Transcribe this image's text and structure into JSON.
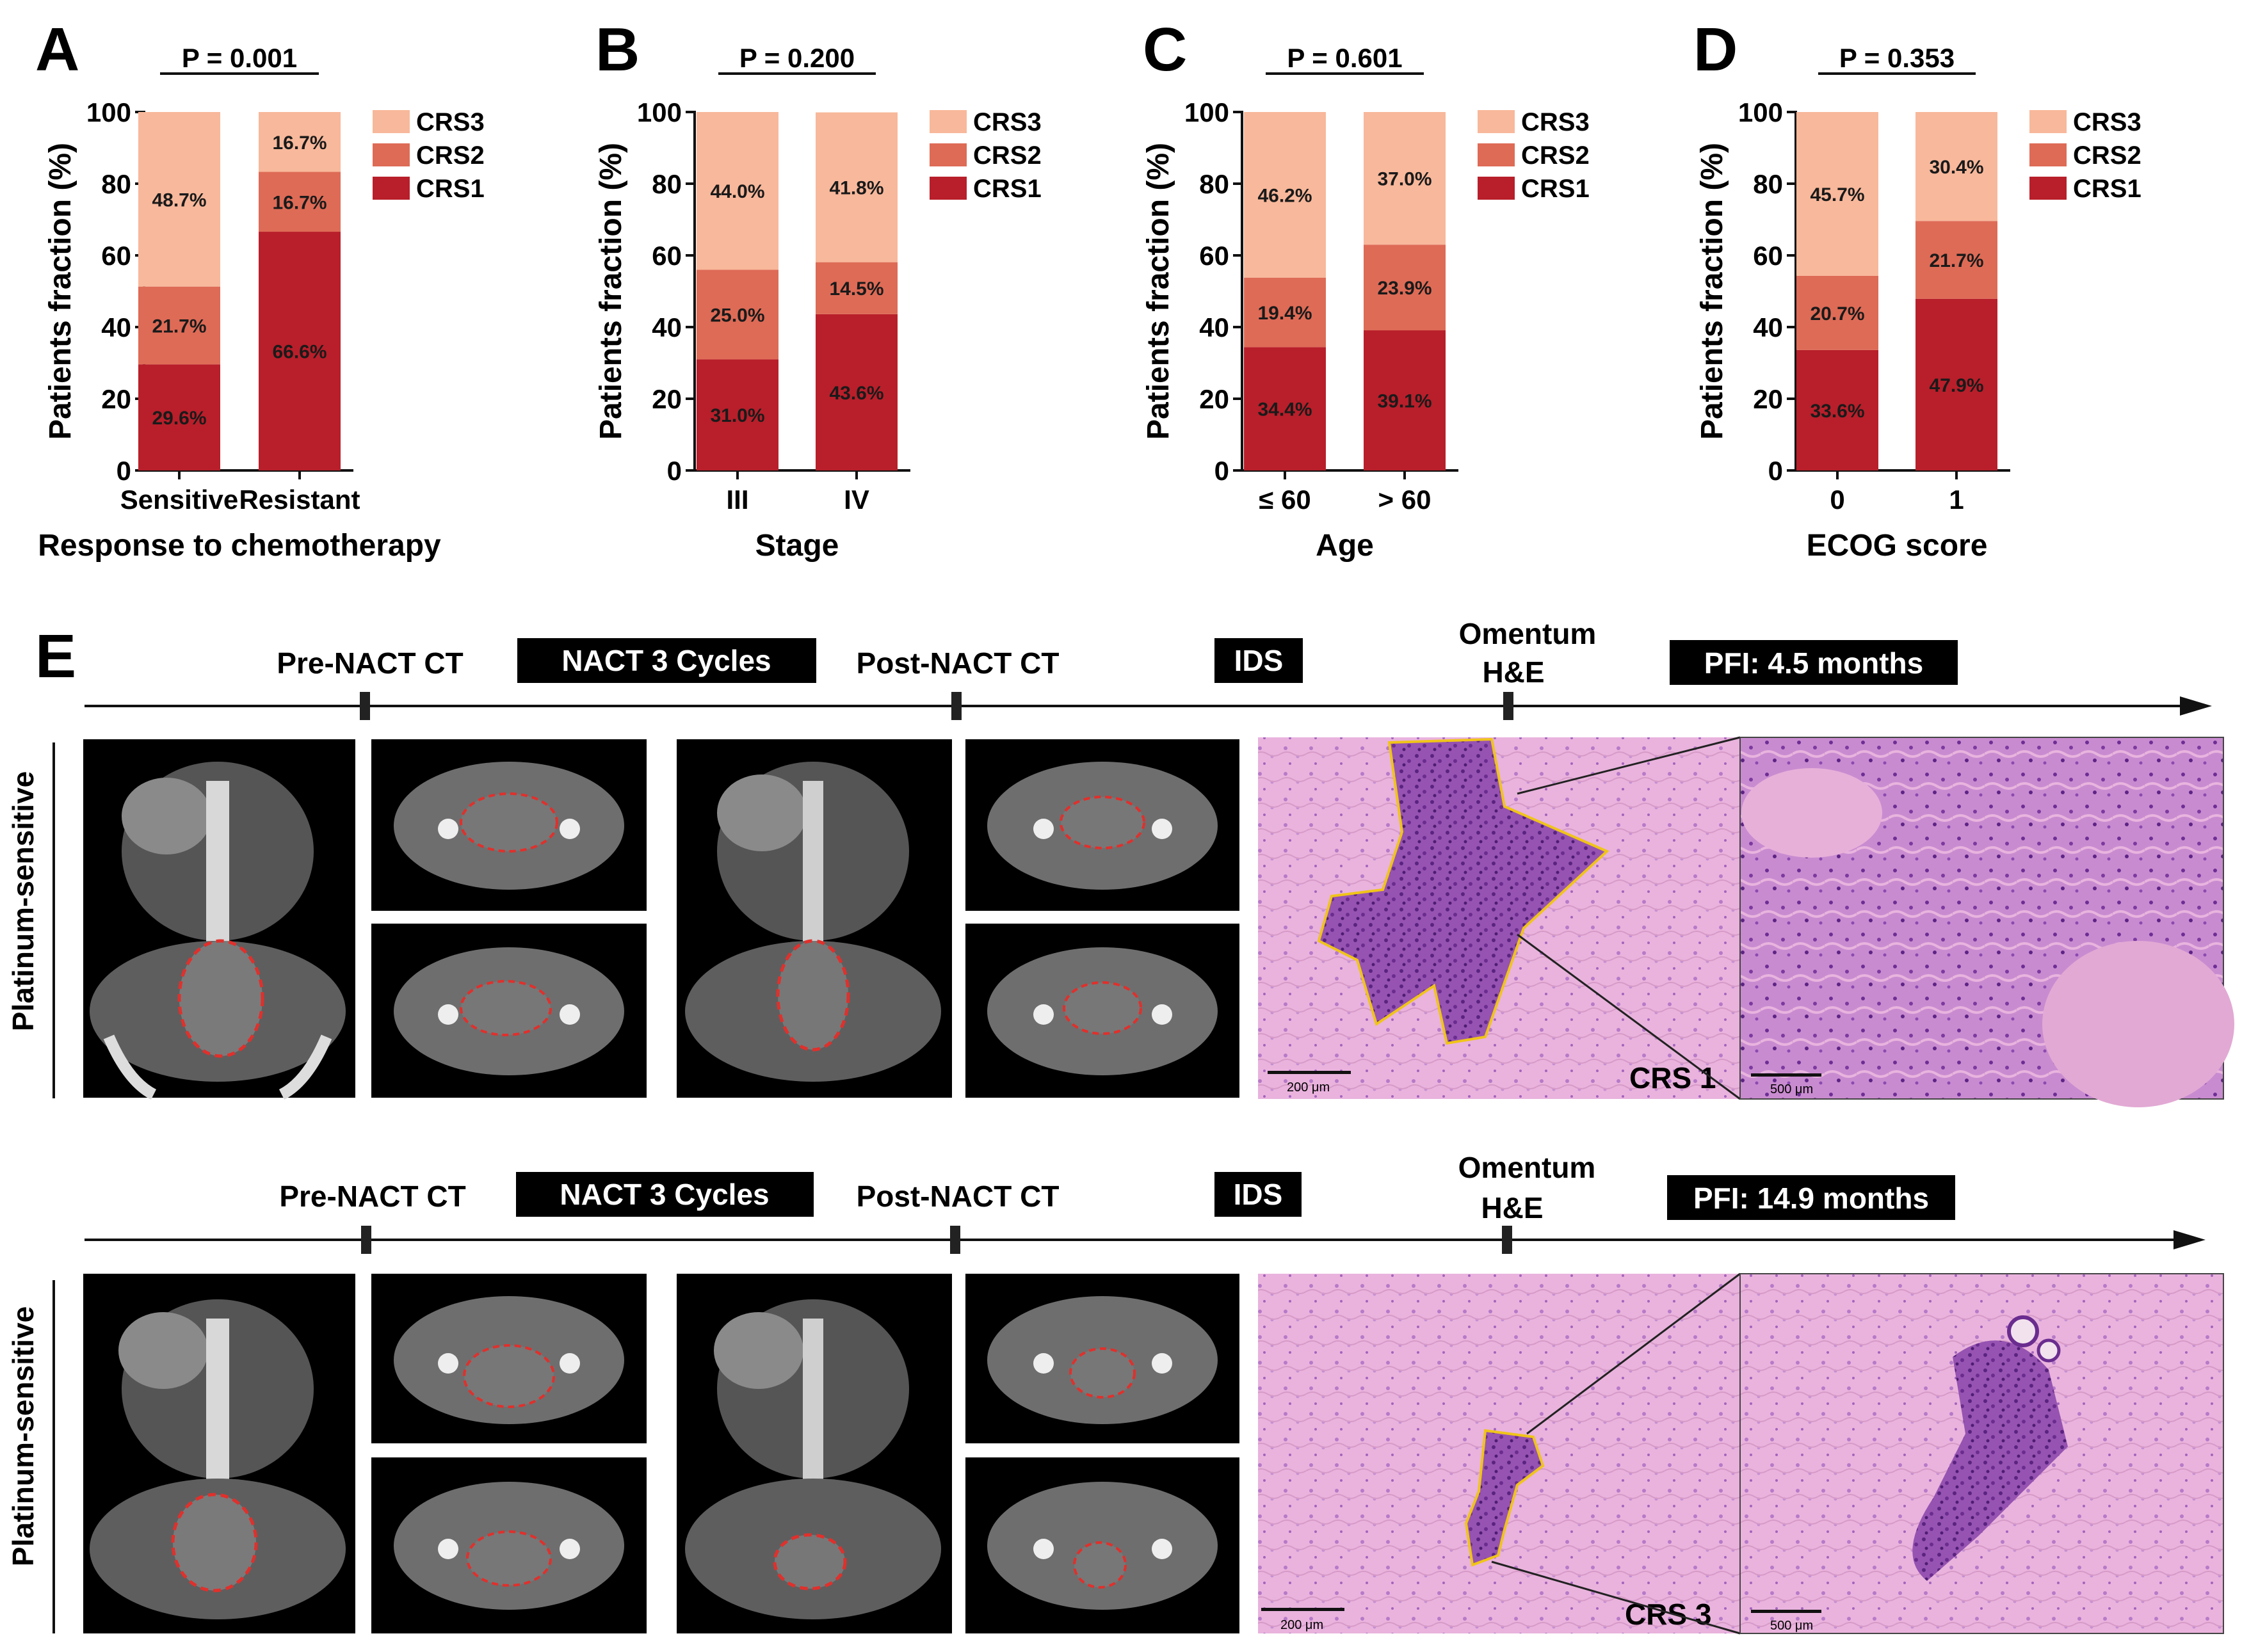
{
  "colors": {
    "crs1": "#b81f2a",
    "crs2": "#de6b56",
    "crs3": "#f8b89b",
    "he_pink": "#e3a6d6",
    "he_purple": "#7d3c9e",
    "ct_bg": "#000000",
    "ct_tissue": "#6e6e6e",
    "tumor_outline": "#e0302c",
    "he_outline": "#f0c419"
  },
  "chart_data": [
    {
      "type": "bar",
      "stacked": true,
      "panel": "A",
      "p_value": "P = 0.001",
      "categories": [
        "Sensitive",
        "Resistant"
      ],
      "xlabel": "Response to chemotherapy",
      "ylabel": "Patients fraction (%)",
      "ylim": [
        0,
        100
      ],
      "yticks": [
        "0",
        "20",
        "40",
        "60",
        "80",
        "100"
      ],
      "legend_position": "right",
      "series": [
        {
          "name": "CRS1",
          "values": [
            29.6,
            66.6
          ],
          "labels": [
            "29.6%",
            "66.6%"
          ]
        },
        {
          "name": "CRS2",
          "values": [
            21.7,
            16.7
          ],
          "labels": [
            "21.7%",
            "16.7%"
          ]
        },
        {
          "name": "CRS3",
          "values": [
            48.7,
            16.7
          ],
          "labels": [
            "48.7%",
            "16.7%"
          ]
        }
      ]
    },
    {
      "type": "bar",
      "stacked": true,
      "panel": "B",
      "p_value": "P = 0.200",
      "categories": [
        "III",
        "IV"
      ],
      "xlabel": "Stage",
      "ylabel": "Patients fraction (%)",
      "ylim": [
        0,
        100
      ],
      "yticks": [
        "0",
        "20",
        "40",
        "60",
        "80",
        "100"
      ],
      "legend_position": "right",
      "series": [
        {
          "name": "CRS1",
          "values": [
            31.0,
            43.6
          ],
          "labels": [
            "31.0%",
            "43.6%"
          ]
        },
        {
          "name": "CRS2",
          "values": [
            25.0,
            14.5
          ],
          "labels": [
            "25.0%",
            "14.5%"
          ]
        },
        {
          "name": "CRS3",
          "values": [
            44.0,
            41.8
          ],
          "labels": [
            "44.0%",
            "41.8%"
          ]
        }
      ]
    },
    {
      "type": "bar",
      "stacked": true,
      "panel": "C",
      "p_value": "P = 0.601",
      "categories": [
        "≤ 60",
        "> 60"
      ],
      "xlabel": "Age",
      "ylabel": "Patients fraction (%)",
      "ylim": [
        0,
        100
      ],
      "yticks": [
        "0",
        "20",
        "40",
        "60",
        "80",
        "100"
      ],
      "legend_position": "right",
      "series": [
        {
          "name": "CRS1",
          "values": [
            34.4,
            39.1
          ],
          "labels": [
            "34.4%",
            "39.1%"
          ]
        },
        {
          "name": "CRS2",
          "values": [
            19.4,
            23.9
          ],
          "labels": [
            "19.4%",
            "23.9%"
          ]
        },
        {
          "name": "CRS3",
          "values": [
            46.2,
            37.0
          ],
          "labels": [
            "46.2%",
            "37.0%"
          ]
        }
      ]
    },
    {
      "type": "bar",
      "stacked": true,
      "panel": "D",
      "p_value": "P = 0.353",
      "categories": [
        "0",
        "1"
      ],
      "xlabel": "ECOG score",
      "ylabel": "Patients fraction (%)",
      "ylim": [
        0,
        100
      ],
      "yticks": [
        "0",
        "20",
        "40",
        "60",
        "80",
        "100"
      ],
      "legend_position": "right",
      "series": [
        {
          "name": "CRS1",
          "values": [
            33.6,
            47.9
          ],
          "labels": [
            "33.6%",
            "47.9%"
          ]
        },
        {
          "name": "CRS2",
          "values": [
            20.7,
            21.7
          ],
          "labels": [
            "20.7%",
            "21.7%"
          ]
        },
        {
          "name": "CRS3",
          "values": [
            45.7,
            30.4
          ],
          "labels": [
            "45.7%",
            "30.4%"
          ]
        }
      ]
    }
  ],
  "panel_e": {
    "letter": "E",
    "rows": [
      {
        "side_label": "Platinum-sensitive",
        "pre_ct": "Pre-NACT CT",
        "nact": "NACT 3 Cycles",
        "post_ct": "Post-NACT CT",
        "ids": "IDS",
        "omentum_line1": "Omentum",
        "omentum_line2": "H&E",
        "pfi": "PFI: 4.5 months",
        "crs_label": "CRS 1",
        "scale_left": "200 μm",
        "scale_right": "500 μm"
      },
      {
        "side_label": "Platinum-sensitive",
        "pre_ct": "Pre-NACT CT",
        "nact": "NACT 3 Cycles",
        "post_ct": "Post-NACT CT",
        "ids": "IDS",
        "omentum_line1": "Omentum",
        "omentum_line2": "H&E",
        "pfi": "PFI: 14.9 months",
        "crs_label": "CRS 3",
        "scale_left": "200 μm",
        "scale_right": "500 μm"
      }
    ]
  }
}
